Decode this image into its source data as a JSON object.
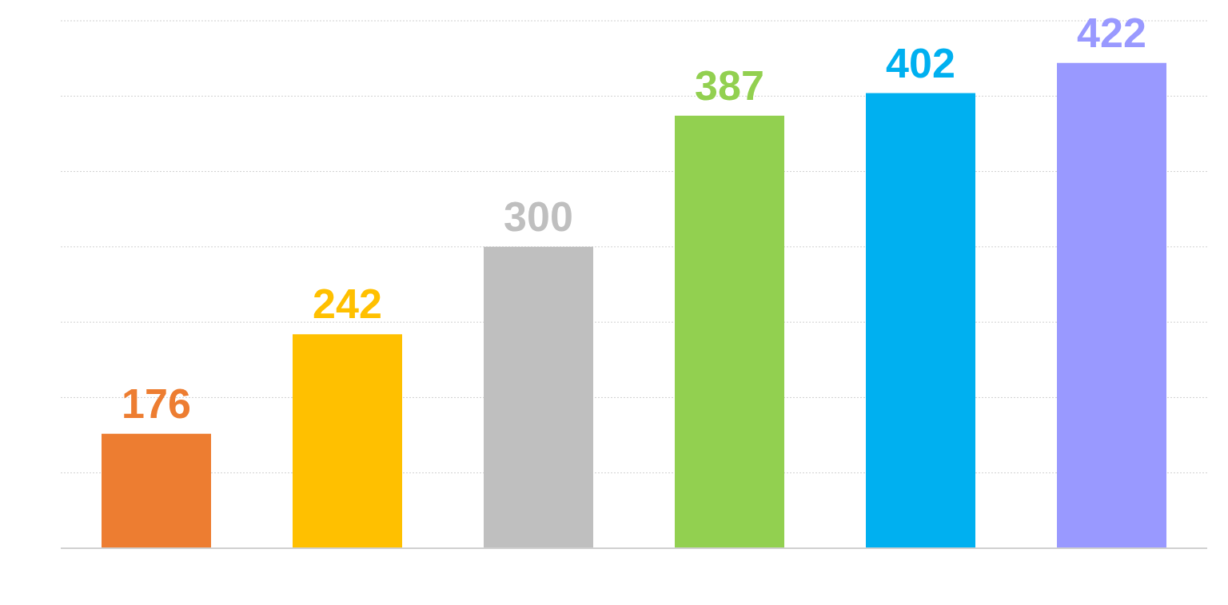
{
  "chart_data": {
    "type": "bar",
    "categories": [
      null,
      null,
      null,
      null,
      null,
      null
    ],
    "values": [
      176,
      242,
      300,
      387,
      402,
      422
    ],
    "colors": [
      "#ed7d31",
      "#ffc000",
      "#bfbfbf",
      "#92d050",
      "#00b0f0",
      "#9999ff"
    ],
    "ylim": [
      100,
      450
    ],
    "grid": "y",
    "tick_labels": false,
    "data_labels": true
  }
}
